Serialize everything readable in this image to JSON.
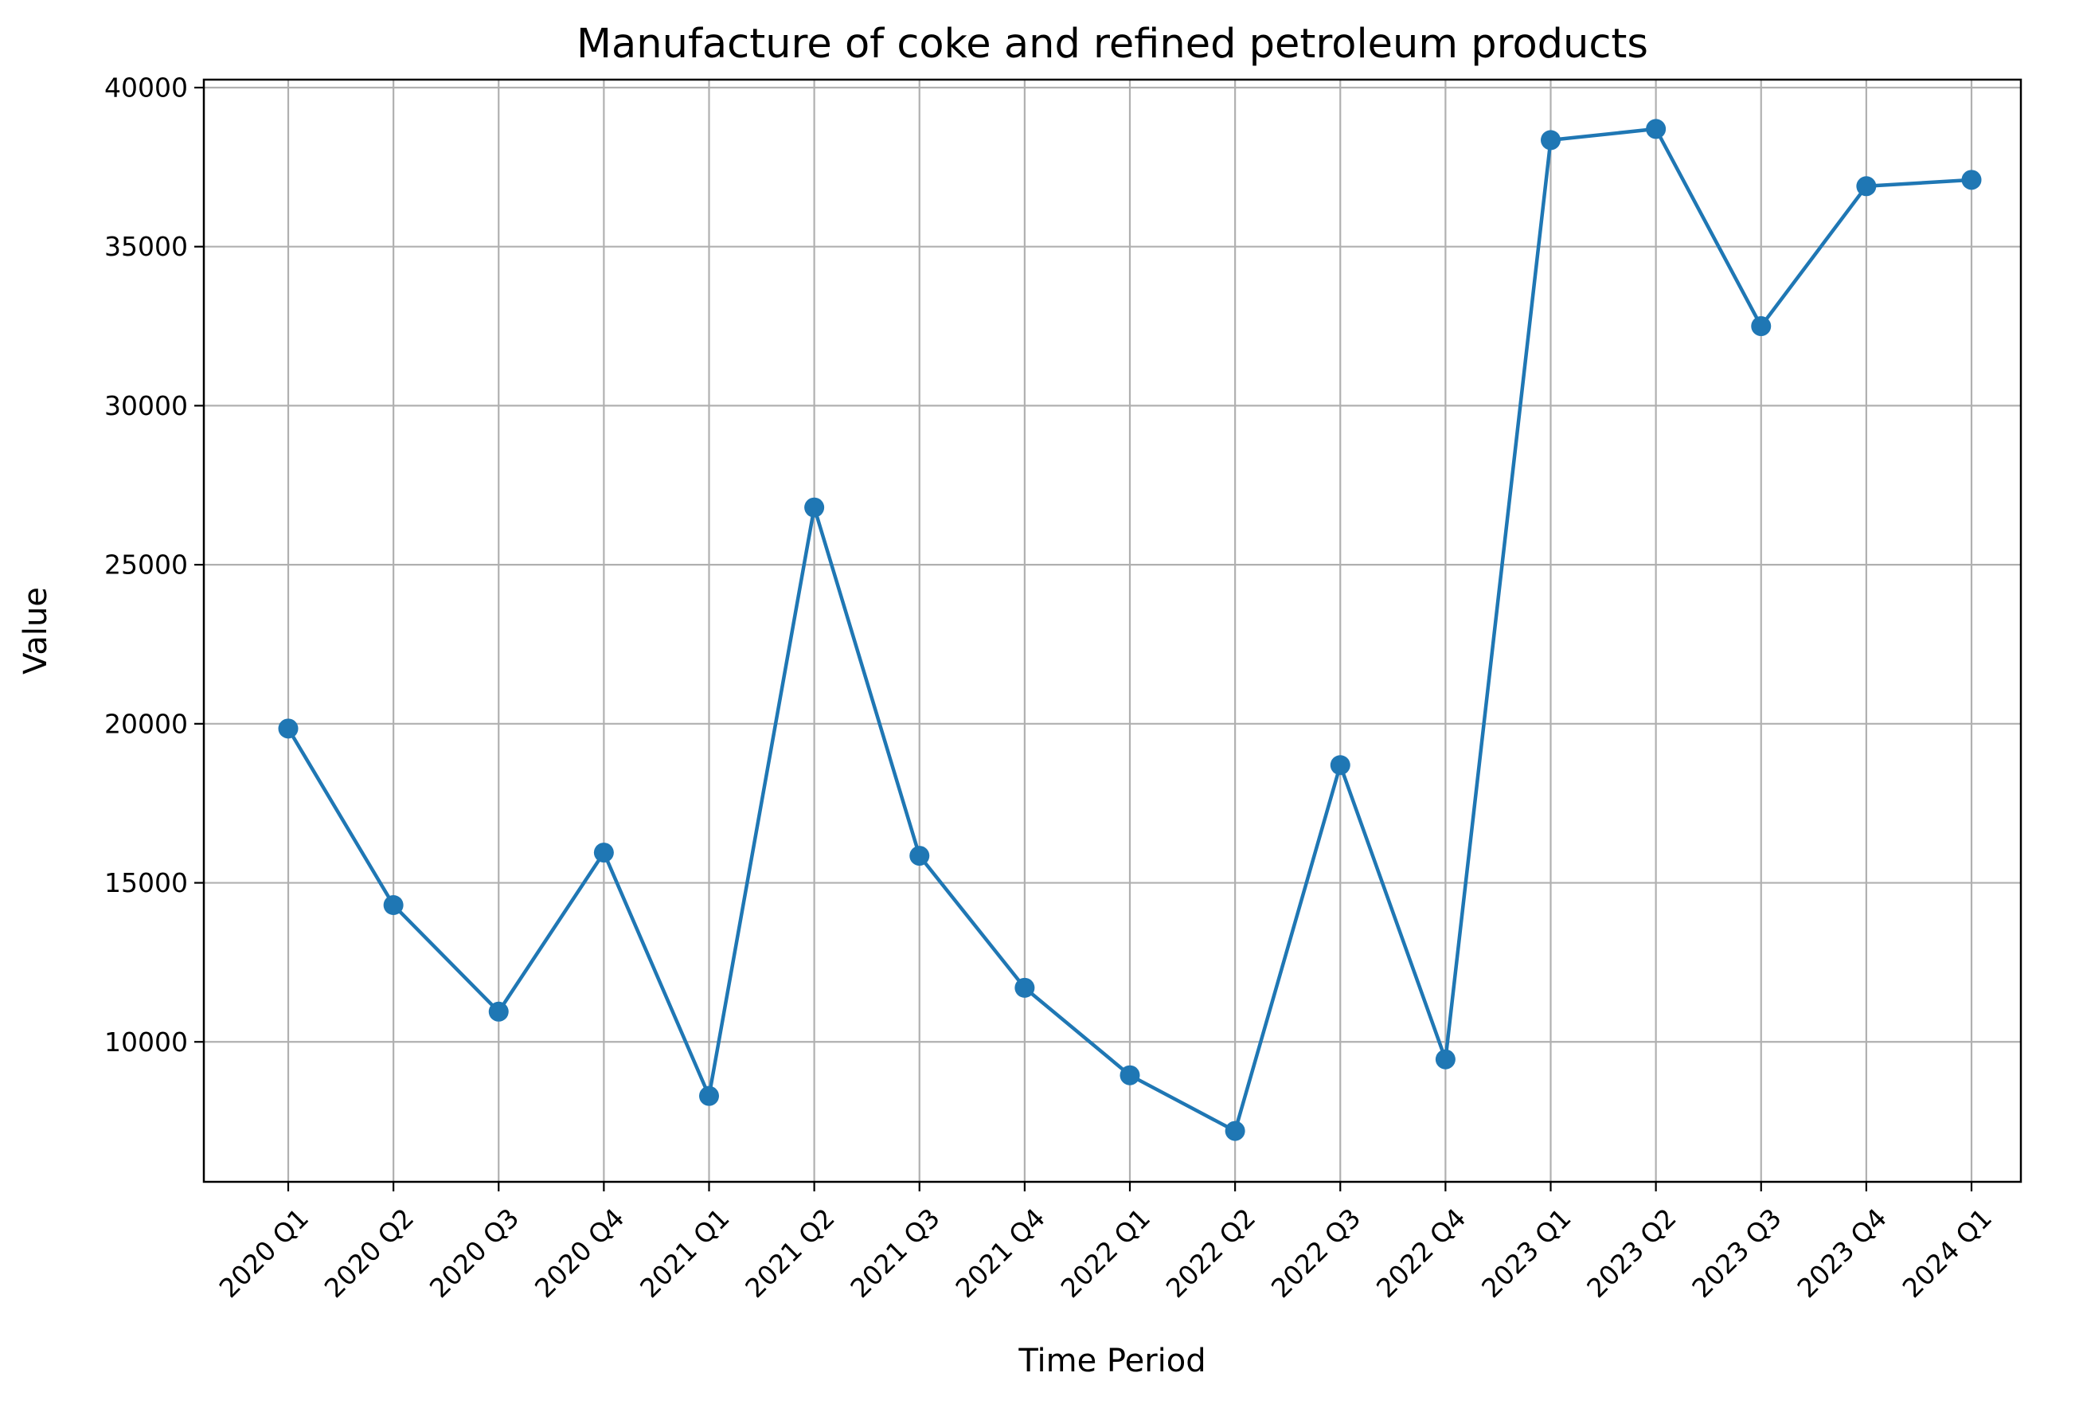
{
  "chart_data": {
    "type": "line",
    "title": "Manufacture of coke and refined petroleum products",
    "xlabel": "Time Period",
    "ylabel": "Value",
    "categories": [
      "2020 Q1",
      "2020 Q2",
      "2020 Q3",
      "2020 Q4",
      "2021 Q1",
      "2021 Q2",
      "2021 Q3",
      "2021 Q4",
      "2022 Q1",
      "2022 Q2",
      "2022 Q3",
      "2022 Q4",
      "2023 Q1",
      "2023 Q2",
      "2023 Q3",
      "2023 Q4",
      "2024 Q1"
    ],
    "series": [
      {
        "values": [
          19850,
          14300,
          10950,
          15950,
          8300,
          26800,
          15850,
          11700,
          8950,
          7200,
          18700,
          9450,
          38350,
          38700,
          32500,
          36900,
          37100
        ]
      }
    ],
    "ylim": [
      5600,
      40250
    ],
    "yticks": [
      10000,
      15000,
      20000,
      25000,
      30000,
      35000,
      40000
    ],
    "grid": true,
    "line_color": "#1f77b4",
    "grid_color": "#b0b0b0"
  }
}
